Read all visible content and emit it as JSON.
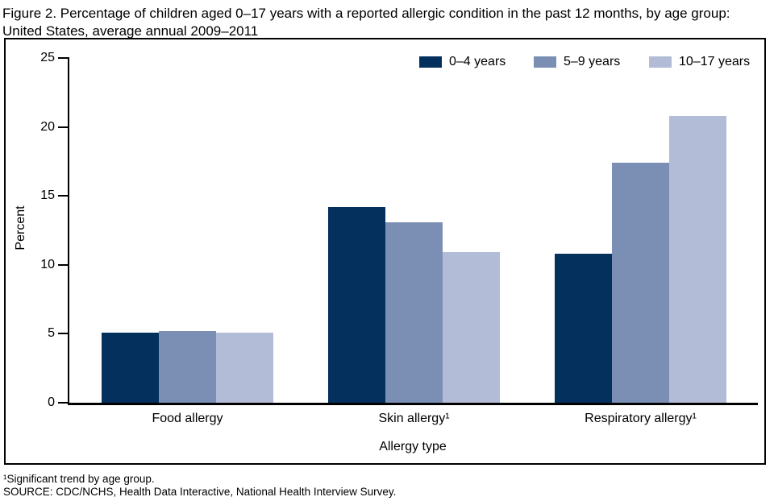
{
  "figure": {
    "title_lines": [
      "Figure 2. Percentage of children aged 0–17 years with a reported allergic condition in the past 12 months, by age group:",
      "United States, average annual 2009–2011"
    ],
    "footnotes": [
      "¹Significant trend by age group.",
      "SOURCE: CDC/NCHS, Health Data Interactive, National Health Interview Survey."
    ]
  },
  "chart_data": {
    "type": "bar",
    "title": "Figure 2. Percentage of children aged 0–17 years with a reported allergic condition in the past 12 months, by age group: United States, average annual 2009–2011",
    "categories": [
      "Food allergy",
      "Skin allergy¹",
      "Respiratory allergy¹"
    ],
    "xlabel": "Allergy type",
    "ylabel": "Percent",
    "ylim": [
      0,
      25
    ],
    "yticks": [
      0,
      5,
      10,
      15,
      20,
      25
    ],
    "grid": false,
    "legend_position": "top-right",
    "series": [
      {
        "name": "0–4 years",
        "color": "#04305e",
        "values": [
          5.1,
          14.2,
          10.8
        ]
      },
      {
        "name": "5–9 years",
        "color": "#7b8fb5",
        "values": [
          5.2,
          13.1,
          17.4
        ]
      },
      {
        "name": "10–17 years",
        "color": "#b3bcd6",
        "values": [
          5.1,
          10.9,
          20.8
        ]
      }
    ]
  }
}
